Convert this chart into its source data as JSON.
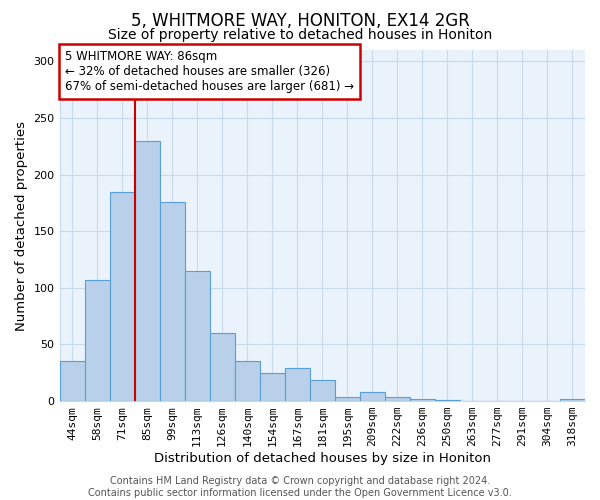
{
  "title": "5, WHITMORE WAY, HONITON, EX14 2GR",
  "subtitle": "Size of property relative to detached houses in Honiton",
  "xlabel": "Distribution of detached houses by size in Honiton",
  "ylabel": "Number of detached properties",
  "bar_labels": [
    "44sqm",
    "58sqm",
    "71sqm",
    "85sqm",
    "99sqm",
    "113sqm",
    "126sqm",
    "140sqm",
    "154sqm",
    "167sqm",
    "181sqm",
    "195sqm",
    "209sqm",
    "222sqm",
    "236sqm",
    "250sqm",
    "263sqm",
    "277sqm",
    "291sqm",
    "304sqm",
    "318sqm"
  ],
  "bar_values": [
    35,
    107,
    185,
    230,
    176,
    115,
    60,
    35,
    25,
    29,
    19,
    4,
    8,
    4,
    2,
    1,
    0,
    0,
    0,
    0,
    2
  ],
  "bar_color": "#b8d0ea",
  "bar_edge_color": "#5a9fd4",
  "vline_color": "#cc0000",
  "annotation_text": "5 WHITMORE WAY: 86sqm\n← 32% of detached houses are smaller (326)\n67% of semi-detached houses are larger (681) →",
  "annotation_box_color": "#ffffff",
  "annotation_box_edge_color": "#cc0000",
  "ylim": [
    0,
    310
  ],
  "yticks": [
    0,
    50,
    100,
    150,
    200,
    250,
    300
  ],
  "footer_text": "Contains HM Land Registry data © Crown copyright and database right 2024.\nContains public sector information licensed under the Open Government Licence v3.0.",
  "title_fontsize": 12,
  "subtitle_fontsize": 10,
  "axis_label_fontsize": 9.5,
  "tick_fontsize": 8,
  "annotation_fontsize": 8.5,
  "footer_fontsize": 7,
  "grid_color": "#c8daea",
  "bg_color": "#eaf2fb"
}
